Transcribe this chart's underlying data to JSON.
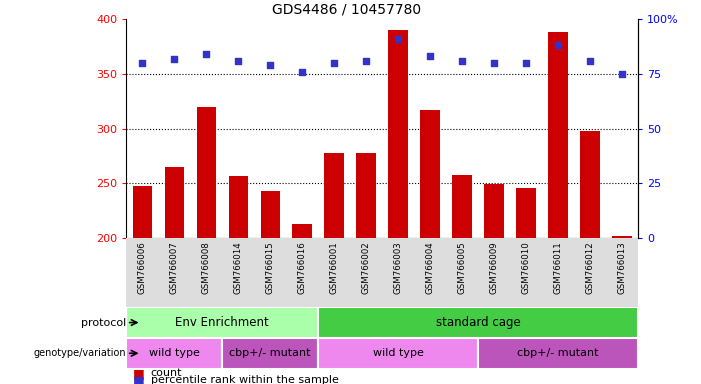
{
  "title": "GDS4486 / 10457780",
  "samples": [
    "GSM766006",
    "GSM766007",
    "GSM766008",
    "GSM766014",
    "GSM766015",
    "GSM766016",
    "GSM766001",
    "GSM766002",
    "GSM766003",
    "GSM766004",
    "GSM766005",
    "GSM766009",
    "GSM766010",
    "GSM766011",
    "GSM766012",
    "GSM766013"
  ],
  "counts": [
    248,
    265,
    320,
    257,
    243,
    213,
    278,
    278,
    390,
    317,
    258,
    249,
    246,
    388,
    298,
    202
  ],
  "percentiles": [
    80,
    82,
    84,
    81,
    79,
    76,
    80,
    81,
    91,
    83,
    81,
    80,
    80,
    88,
    81,
    75
  ],
  "ylim_left": [
    200,
    400
  ],
  "ylim_right": [
    0,
    100
  ],
  "yticks_left": [
    200,
    250,
    300,
    350,
    400
  ],
  "yticks_right": [
    0,
    25,
    50,
    75,
    100
  ],
  "bar_color": "#cc0000",
  "dot_color": "#3333cc",
  "protocol_groups": [
    {
      "label": "Env Enrichment",
      "start": 0,
      "end": 5,
      "color": "#aaffaa"
    },
    {
      "label": "standard cage",
      "start": 6,
      "end": 15,
      "color": "#44cc44"
    }
  ],
  "genotype_groups": [
    {
      "label": "wild type",
      "start": 0,
      "end": 2,
      "color": "#ee88ee"
    },
    {
      "label": "cbp+/- mutant",
      "start": 3,
      "end": 5,
      "color": "#bb55bb"
    },
    {
      "label": "wild type",
      "start": 6,
      "end": 10,
      "color": "#ee88ee"
    },
    {
      "label": "cbp+/- mutant",
      "start": 11,
      "end": 15,
      "color": "#bb55bb"
    }
  ],
  "legend_count_color": "#cc0000",
  "legend_pct_color": "#3333cc"
}
